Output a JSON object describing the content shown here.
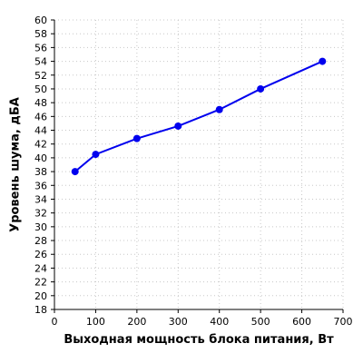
{
  "chart_data": {
    "type": "line",
    "title": "",
    "xlabel": "Выходная мощность блока питания, Вт",
    "ylabel": "Уровень шума, дБА",
    "xlim": [
      0,
      700
    ],
    "ylim": [
      18,
      60
    ],
    "xticks": [
      0,
      100,
      200,
      300,
      400,
      500,
      600,
      700
    ],
    "yticks": [
      18,
      20,
      22,
      24,
      26,
      28,
      30,
      32,
      34,
      36,
      38,
      40,
      42,
      44,
      46,
      48,
      50,
      52,
      54,
      56,
      58,
      60
    ],
    "grid": true,
    "series": [
      {
        "color": "#0000ee",
        "x": [
          50,
          100,
          200,
          300,
          400,
          500,
          650
        ],
        "y": [
          38.0,
          40.5,
          42.8,
          44.6,
          47.0,
          50.0,
          54.0
        ]
      }
    ]
  }
}
